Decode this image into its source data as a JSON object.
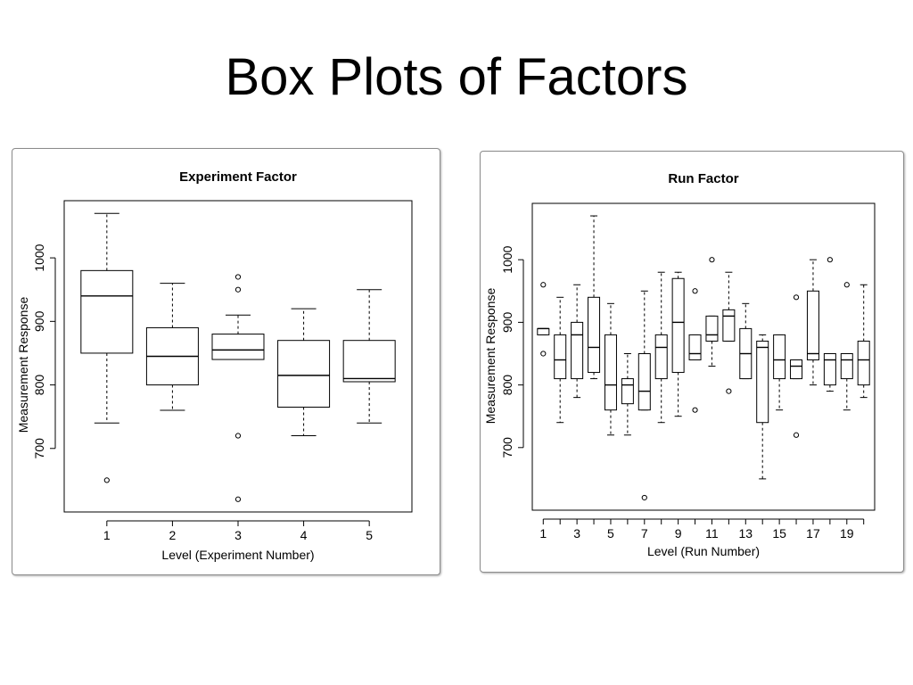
{
  "slide": {
    "title": "Box Plots of Factors"
  },
  "chart_data": [
    {
      "type": "boxplot",
      "title": "Experiment Factor",
      "xlabel": "Level (Experiment Number)",
      "ylabel": "Measurement Response",
      "ylim": [
        600,
        1090
      ],
      "yticks": [
        "700",
        "800",
        "900",
        "1000"
      ],
      "xticks": [
        "1",
        "2",
        "3",
        "4",
        "5"
      ],
      "categories": [
        "1",
        "2",
        "3",
        "4",
        "5"
      ],
      "boxes": [
        {
          "category": "1",
          "whisker_low": 740,
          "q1": 850,
          "median": 940,
          "q3": 980,
          "whisker_high": 1070,
          "outliers": [
            650
          ]
        },
        {
          "category": "2",
          "whisker_low": 760,
          "q1": 800,
          "median": 845,
          "q3": 890,
          "whisker_high": 960,
          "outliers": []
        },
        {
          "category": "3",
          "whisker_low": 840,
          "q1": 840,
          "median": 855,
          "q3": 880,
          "whisker_high": 910,
          "outliers": [
            970,
            950,
            720,
            620
          ]
        },
        {
          "category": "4",
          "whisker_low": 720,
          "q1": 765,
          "median": 815,
          "q3": 870,
          "whisker_high": 920,
          "outliers": []
        },
        {
          "category": "5",
          "whisker_low": 740,
          "q1": 805,
          "median": 810,
          "q3": 870,
          "whisker_high": 950,
          "outliers": []
        }
      ]
    },
    {
      "type": "boxplot",
      "title": "Run Factor",
      "xlabel": "Level (Run Number)",
      "ylabel": "Measurement Response",
      "ylim": [
        600,
        1090
      ],
      "yticks": [
        "700",
        "800",
        "900",
        "1000"
      ],
      "xticks": [
        "1",
        "3",
        "5",
        "7",
        "9",
        "11",
        "13",
        "15",
        "17",
        "19"
      ],
      "categories": [
        "1",
        "2",
        "3",
        "4",
        "5",
        "6",
        "7",
        "8",
        "9",
        "10",
        "11",
        "12",
        "13",
        "14",
        "15",
        "16",
        "17",
        "18",
        "19",
        "20"
      ],
      "boxes": [
        {
          "category": "1",
          "whisker_low": 880,
          "q1": 880,
          "median": 890,
          "q3": 890,
          "whisker_high": 890,
          "outliers": [
            960,
            850
          ]
        },
        {
          "category": "2",
          "whisker_low": 740,
          "q1": 810,
          "median": 840,
          "q3": 880,
          "whisker_high": 940,
          "outliers": []
        },
        {
          "category": "3",
          "whisker_low": 780,
          "q1": 810,
          "median": 880,
          "q3": 900,
          "whisker_high": 960,
          "outliers": []
        },
        {
          "category": "4",
          "whisker_low": 810,
          "q1": 820,
          "median": 860,
          "q3": 940,
          "whisker_high": 1070,
          "outliers": []
        },
        {
          "category": "5",
          "whisker_low": 720,
          "q1": 760,
          "median": 800,
          "q3": 880,
          "whisker_high": 930,
          "outliers": []
        },
        {
          "category": "6",
          "whisker_low": 720,
          "q1": 770,
          "median": 800,
          "q3": 810,
          "whisker_high": 850,
          "outliers": []
        },
        {
          "category": "7",
          "whisker_low": 760,
          "q1": 760,
          "median": 790,
          "q3": 850,
          "whisker_high": 950,
          "outliers": [
            620
          ]
        },
        {
          "category": "8",
          "whisker_low": 740,
          "q1": 810,
          "median": 860,
          "q3": 880,
          "whisker_high": 980,
          "outliers": []
        },
        {
          "category": "9",
          "whisker_low": 750,
          "q1": 820,
          "median": 900,
          "q3": 970,
          "whisker_high": 980,
          "outliers": []
        },
        {
          "category": "10",
          "whisker_low": 840,
          "q1": 840,
          "median": 850,
          "q3": 880,
          "whisker_high": 880,
          "outliers": [
            950,
            760
          ]
        },
        {
          "category": "11",
          "whisker_low": 830,
          "q1": 870,
          "median": 880,
          "q3": 910,
          "whisker_high": 910,
          "outliers": [
            1000
          ]
        },
        {
          "category": "12",
          "whisker_low": 870,
          "q1": 870,
          "median": 910,
          "q3": 920,
          "whisker_high": 980,
          "outliers": [
            790
          ]
        },
        {
          "category": "13",
          "whisker_low": 810,
          "q1": 810,
          "median": 850,
          "q3": 890,
          "whisker_high": 930,
          "outliers": []
        },
        {
          "category": "14",
          "whisker_low": 650,
          "q1": 740,
          "median": 860,
          "q3": 870,
          "whisker_high": 880,
          "outliers": []
        },
        {
          "category": "15",
          "whisker_low": 760,
          "q1": 810,
          "median": 840,
          "q3": 880,
          "whisker_high": 880,
          "outliers": []
        },
        {
          "category": "16",
          "whisker_low": 810,
          "q1": 810,
          "median": 830,
          "q3": 840,
          "whisker_high": 840,
          "outliers": [
            940,
            720
          ]
        },
        {
          "category": "17",
          "whisker_low": 800,
          "q1": 840,
          "median": 850,
          "q3": 950,
          "whisker_high": 1000,
          "outliers": []
        },
        {
          "category": "18",
          "whisker_low": 790,
          "q1": 800,
          "median": 840,
          "q3": 850,
          "whisker_high": 850,
          "outliers": [
            1000
          ]
        },
        {
          "category": "19",
          "whisker_low": 760,
          "q1": 810,
          "median": 840,
          "q3": 850,
          "whisker_high": 850,
          "outliers": [
            960
          ]
        },
        {
          "category": "20",
          "whisker_low": 780,
          "q1": 800,
          "median": 840,
          "q3": 870,
          "whisker_high": 960,
          "outliers": []
        }
      ]
    }
  ]
}
